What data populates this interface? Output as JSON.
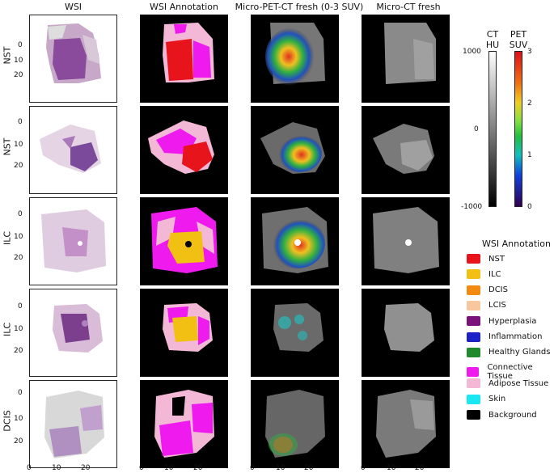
{
  "columns": [
    "WSI",
    "WSI Annotation",
    "Micro-PET-CT fresh (0-3 SUV)",
    "Micro-CT fresh"
  ],
  "rows": [
    "NST",
    "NST",
    "ILC",
    "ILC",
    "DCIS"
  ],
  "yticks": [
    "0",
    "10",
    "20"
  ],
  "xticks": [
    "0",
    "10",
    "20"
  ],
  "colorbars": {
    "ct": {
      "title_line1": "CT",
      "title_line2": "HU",
      "top": "1000",
      "mid": "0",
      "bottom": "-1000"
    },
    "pet": {
      "title_line1": "PET",
      "title_line2": "SUV",
      "t3": "3",
      "t2": "2",
      "t1": "1",
      "t0": "0"
    }
  },
  "legend": {
    "title": "WSI Annotation",
    "items": [
      {
        "label": "NST",
        "color": "#e8141b"
      },
      {
        "label": "ILC",
        "color": "#f2c013"
      },
      {
        "label": "DCIS",
        "color": "#f28a12"
      },
      {
        "label": "LCIS",
        "color": "#f7c89d"
      },
      {
        "label": "Hyperplasia",
        "color": "#7b127b"
      },
      {
        "label": "Inflammation",
        "color": "#1a22c8"
      },
      {
        "label": "Healthy Glands",
        "color": "#1f8a2a"
      },
      {
        "label": "Connective Tissue",
        "color": "#ee1aee"
      },
      {
        "label": "Adipose Tissue",
        "color": "#f3b8d6"
      },
      {
        "label": "Skin",
        "color": "#19e8f2"
      },
      {
        "label": "Background",
        "color": "#000000"
      }
    ]
  }
}
